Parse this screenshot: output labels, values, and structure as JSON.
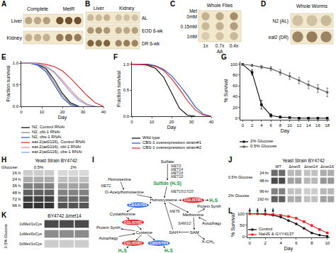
{
  "panels": {
    "A": {
      "label": "A",
      "col_groups": [
        "Complete",
        "MetR"
      ],
      "rows": [
        {
          "name": "Liver",
          "spots": [
            0.35,
            0.35,
            0.4,
            0.85,
            0.85,
            0.85
          ]
        },
        {
          "name": "Kidney",
          "spots": [
            0.3,
            0.3,
            0.3,
            0.6,
            0.65,
            0.6
          ]
        }
      ]
    },
    "B": {
      "label": "B",
      "col_groups": [
        "Liver",
        "Kidney"
      ],
      "rows": [
        {
          "name": "AL",
          "spots": [
            0.25,
            0.25,
            0.3,
            0.2,
            0.2,
            0.2
          ]
        },
        {
          "name": "EOD 6-wk",
          "spots": [
            0.45,
            0.5,
            0.45,
            0.35,
            0.35,
            0.4
          ]
        },
        {
          "name": "DR 6-wk",
          "spots": [
            0.75,
            0.7,
            0.75,
            0.55,
            0.6,
            0.55
          ]
        }
      ]
    },
    "C": {
      "label": "C",
      "title": "Whole Flies",
      "row_title": "Met",
      "rows": [
        {
          "name": "0mM",
          "spots": [
            0.3,
            0.35,
            0.5
          ]
        },
        {
          "name": "0.15mM",
          "spots": [
            0.25,
            0.3,
            0.4
          ]
        },
        {
          "name": "1mM",
          "spots": [
            0.15,
            0.2,
            0.25
          ]
        }
      ],
      "col_labels": [
        "1x",
        "0.7x",
        "0.4x"
      ],
      "col_title": "AA"
    },
    "D": {
      "label": "D",
      "title": "Whole Worms",
      "rows": [
        {
          "name": "N2 (AL)",
          "spots": [
            0.2,
            0.2,
            0.25
          ]
        },
        {
          "name": "eat2 (DR)",
          "spots": [
            0.55,
            0.6,
            0.55
          ]
        }
      ]
    },
    "H": {
      "label": "H",
      "title": "Yeast Strain BY4742",
      "col_title": "Glucose:",
      "col_groups": [
        "0.5%",
        "2%"
      ],
      "rows": [
        {
          "name": "16 h",
          "spots": [
            0.15,
            0.15,
            0.15,
            0.1,
            0.1,
            0.1
          ]
        },
        {
          "name": "24 h",
          "spots": [
            0.3,
            0.3,
            0.3,
            0.2,
            0.2,
            0.2
          ]
        },
        {
          "name": "36 h",
          "spots": [
            0.5,
            0.5,
            0.5,
            0.35,
            0.35,
            0.35
          ]
        },
        {
          "name": "48 h",
          "spots": [
            0.65,
            0.65,
            0.65,
            0.5,
            0.5,
            0.5
          ]
        },
        {
          "name": "72 h",
          "spots": [
            0.8,
            0.8,
            0.8,
            0.6,
            0.6,
            0.6
          ]
        },
        {
          "name": "96 h",
          "spots": [
            0.85,
            0.85,
            0.85,
            0.7,
            0.7,
            0.7
          ]
        }
      ]
    },
    "I": {
      "label": "I",
      "nodes": [
        {
          "text": "Sulfate",
          "kind": "metabolite"
        },
        {
          "text": "MET3",
          "kind": "enzyme"
        },
        {
          "text": "MET14",
          "kind": "enzyme"
        },
        {
          "text": "MET16",
          "kind": "enzyme"
        },
        {
          "text": "MET10",
          "kind": "enzyme"
        },
        {
          "text": "Sulfide (H₂S)",
          "kind": "green"
        },
        {
          "text": "Homoserine",
          "kind": "metabolite"
        },
        {
          "text": "MET2",
          "kind": "enzyme"
        },
        {
          "text": "O-Acetylhomoserine",
          "kind": "metabolite"
        },
        {
          "text": "MET15/17/25",
          "kind": "enzyme"
        },
        {
          "text": "Homocysteine",
          "kind": "metabolite"
        },
        {
          "text": "CGL/STR1",
          "kind": "red"
        },
        {
          "text": "H₂S",
          "kind": "green"
        },
        {
          "text": "MET6",
          "kind": "enzyme"
        },
        {
          "text": "Methionine",
          "kind": "metabolite"
        },
        {
          "text": "Protein Synth",
          "kind": "process"
        },
        {
          "text": "Autophagy",
          "kind": "process"
        },
        {
          "text": "SAM1/2",
          "kind": "enzyme"
        },
        {
          "text": "SAM",
          "kind": "metabolite"
        },
        {
          "text": "X-CH₃",
          "kind": "metabolite"
        },
        {
          "text": "SAH",
          "kind": "metabolite"
        },
        {
          "text": "CBS/STR4",
          "kind": "blue"
        },
        {
          "text": "Cystathionine",
          "kind": "metabolite"
        },
        {
          "text": "CGL/STR1",
          "kind": "red"
        },
        {
          "text": "Cysteine",
          "kind": "metabolite"
        },
        {
          "text": "Protein Synth",
          "kind": "process"
        },
        {
          "text": "Autophagy",
          "kind": "process"
        },
        {
          "text": "CGL/STR1",
          "kind": "red"
        },
        {
          "text": "CBS/STR4",
          "kind": "blue"
        },
        {
          "text": "H₂S",
          "kind": "green"
        },
        {
          "text": "H₂S",
          "kind": "green"
        }
      ],
      "edges": [
        [
          0,
          5
        ],
        [
          6,
          8
        ],
        [
          5,
          10
        ],
        [
          8,
          10
        ],
        [
          10,
          11
        ],
        [
          11,
          12
        ],
        [
          10,
          14
        ],
        [
          14,
          15
        ],
        [
          16,
          14
        ],
        [
          14,
          18
        ],
        [
          18,
          20
        ],
        [
          18,
          19
        ],
        [
          20,
          10
        ],
        [
          10,
          21
        ],
        [
          21,
          22
        ],
        [
          22,
          23
        ],
        [
          23,
          24
        ],
        [
          24,
          25
        ],
        [
          26,
          24
        ],
        [
          24,
          27
        ],
        [
          27,
          29
        ],
        [
          24,
          28
        ],
        [
          28,
          30
        ]
      ]
    },
    "J": {
      "label": "J",
      "title": "Yeast Strain BY4742",
      "col_labels": [
        "WT",
        "Δmet5",
        "Δmet14",
        "Δmet16"
      ],
      "row_groups": [
        {
          "name": "0.5% Glucose",
          "rows": [
            {
              "name": "24-hr",
              "spots": [
                0.6,
                0.6,
                0.25,
                0.25,
                0.2,
                0.2,
                0.3,
                0.3
              ]
            },
            {
              "name": "48-hr",
              "spots": [
                0.75,
                0.75,
                0.35,
                0.35,
                0.25,
                0.25,
                0.4,
                0.4
              ]
            }
          ]
        },
        {
          "name": "2% Glucose",
          "rows": [
            {
              "name": "96-hr",
              "spots": [
                0.5,
                0.5,
                0.2,
                0.2,
                0.15,
                0.15,
                0.25,
                0.25
              ]
            },
            {
              "name": "192-hr",
              "spots": [
                0.65,
                0.65,
                0.3,
                0.3,
                0.2,
                0.2,
                0.35,
                0.35
              ]
            }
          ]
        }
      ]
    },
    "K": {
      "label": "K",
      "title": "BY4742 Δmet14",
      "side": "0.5% Glucose",
      "rows": [
        {
          "name": "1xMet/1xCys",
          "spots": [
            0.75,
            0.75,
            0.75
          ]
        },
        {
          "name": "1xMet/0xCys",
          "spots": [
            0.45,
            0.45,
            0.45
          ]
        },
        {
          "name": "0xMet/1xCys",
          "spots": [
            0.15,
            0.15,
            0.15
          ]
        }
      ]
    }
  },
  "chart_data": [
    {
      "panel": "E",
      "type": "line",
      "x": [
        0,
        4,
        8,
        12,
        16,
        20,
        24,
        28,
        32,
        36,
        40
      ],
      "x_label": "Day",
      "y_label": "Fraction survival",
      "xlim": [
        0,
        40
      ],
      "xticks": [
        0,
        10,
        20,
        30,
        40
      ],
      "ylim": [
        0,
        1.05
      ],
      "yticks": [
        {
          "value": 0,
          "label": "0.0"
        },
        0.5,
        {
          "value": 1,
          "label": "1.0"
        }
      ],
      "grid": false,
      "series": [
        {
          "name": "N2, Control RNAi",
          "color": "#000000",
          "values": [
            1,
            1,
            0.97,
            0.88,
            0.62,
            0.3,
            0.08,
            0,
            null,
            null,
            null
          ]
        },
        {
          "name": "N2, cbl-1 RNAi",
          "color": "#808080",
          "values": [
            1,
            1,
            0.96,
            0.85,
            0.55,
            0.25,
            0.05,
            0,
            null,
            null,
            null
          ]
        },
        {
          "name": "N2, cbs-1 RNAi",
          "color": "#3355cc",
          "values": [
            1,
            1,
            0.95,
            0.8,
            0.5,
            0.2,
            0.03,
            0,
            null,
            null,
            null
          ]
        },
        {
          "name": "eat-2(ad1116), Control RNAi",
          "color": "#e02020",
          "values": [
            1,
            1,
            1,
            0.97,
            0.92,
            0.82,
            0.65,
            0.45,
            0.25,
            0.08,
            0
          ]
        },
        {
          "name": "eat-2(ad1116), cbl-1 RNAi",
          "color": "#f08080",
          "values": [
            1,
            1,
            0.98,
            0.93,
            0.8,
            0.6,
            0.38,
            0.18,
            0.05,
            0,
            null
          ]
        },
        {
          "name": "eat-2(ad1116), cbs-1 RNAi",
          "color": "#7fa0e0",
          "values": [
            1,
            1,
            0.98,
            0.92,
            0.78,
            0.55,
            0.33,
            0.14,
            0.03,
            0,
            null
          ]
        }
      ]
    },
    {
      "panel": "F",
      "type": "line",
      "x": [
        0,
        4,
        8,
        12,
        16,
        20,
        24,
        28,
        32,
        36,
        40
      ],
      "x_label": "Day",
      "y_label": "Fraction survival",
      "xlim": [
        0,
        40
      ],
      "xticks": [
        0,
        10,
        20,
        30,
        40
      ],
      "ylim": [
        0,
        1.05
      ],
      "yticks": [
        {
          "value": 0,
          "label": "0.0"
        },
        0.5,
        {
          "value": 1,
          "label": "1.0"
        }
      ],
      "grid": false,
      "series": [
        {
          "name": "Wild type",
          "color": "#000000",
          "values": [
            1,
            1,
            0.98,
            0.92,
            0.75,
            0.45,
            0.15,
            0.02,
            0,
            null,
            null
          ]
        },
        {
          "name": "CBS-1 overexpression strain#1",
          "color": "#2050d0",
          "values": [
            1,
            1,
            1,
            0.97,
            0.9,
            0.78,
            0.6,
            0.4,
            0.18,
            0.04,
            0
          ]
        },
        {
          "name": "CBS-1 overexpression strain#2",
          "color": "#e02020",
          "values": [
            1,
            1,
            0.99,
            0.96,
            0.88,
            0.72,
            0.52,
            0.3,
            0.12,
            0.02,
            0
          ]
        }
      ]
    },
    {
      "panel": "G",
      "type": "line",
      "x": [
        0,
        2,
        4,
        6,
        8,
        10,
        12,
        14,
        16,
        18
      ],
      "x_label": "Day",
      "y_label": "% Survival",
      "xlim": [
        -0.5,
        18.5
      ],
      "xticks": [
        0,
        2,
        4,
        6,
        8,
        10,
        12,
        14,
        16,
        18
      ],
      "ylim": [
        -3,
        105
      ],
      "yticks": [
        0,
        20,
        40,
        60,
        80,
        100
      ],
      "grid": false,
      "series": [
        {
          "name": "2% Glucose",
          "color": "#000000",
          "marker": "square",
          "values": [
            100,
            85,
            25,
            5,
            2,
            1,
            0,
            0,
            0,
            0
          ],
          "errors": [
            0,
            5,
            8,
            3,
            2,
            1,
            0,
            0,
            0,
            0
          ]
        },
        {
          "name": "0.5% Glucose",
          "color": "#555555",
          "marker": "circle",
          "values": [
            100,
            98,
            95,
            92,
            85,
            78,
            70,
            62,
            55,
            48
          ],
          "errors": [
            0,
            2,
            3,
            4,
            5,
            6,
            6,
            7,
            7,
            8
          ]
        }
      ]
    },
    {
      "panel": "L",
      "type": "line",
      "x": [
        0,
        1,
        2,
        3,
        4,
        5,
        6,
        7,
        8,
        9,
        10
      ],
      "x_label": "Day",
      "y_label": "% Survival",
      "xlim": [
        -0.3,
        10.3
      ],
      "xticks": [
        0,
        2,
        4,
        6,
        8,
        10
      ],
      "ylim": [
        -5,
        105
      ],
      "yticks": [
        0,
        50,
        100
      ],
      "grid": false,
      "treatment_days": [
        0,
        1,
        2,
        3
      ],
      "series": [
        {
          "name": "Control",
          "color": "#000000",
          "marker": "circle",
          "values": [
            100,
            100,
            97,
            93,
            85,
            70,
            55,
            35,
            15,
            5,
            0
          ]
        },
        {
          "name": "NaHS & GYY4137",
          "color": "#e02020",
          "marker": "square",
          "values": [
            100,
            100,
            100,
            97,
            93,
            88,
            80,
            65,
            48,
            30,
            15
          ]
        }
      ]
    }
  ]
}
